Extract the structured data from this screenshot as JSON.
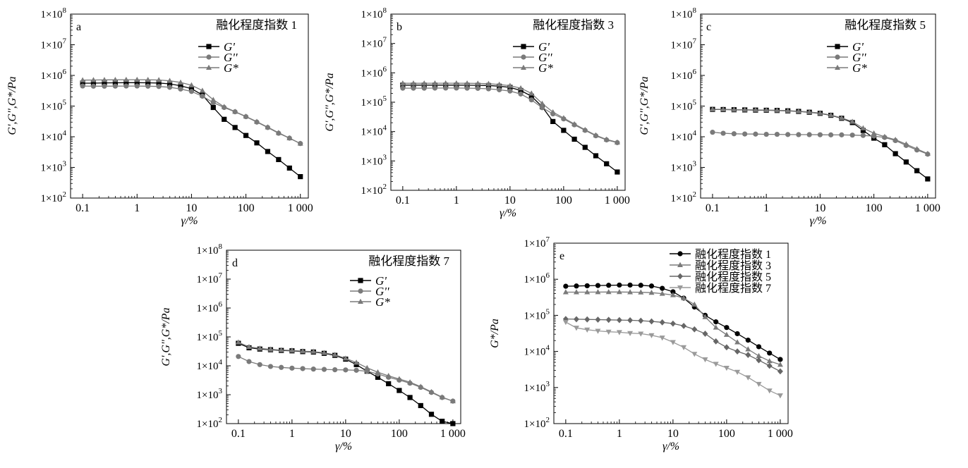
{
  "chart_data": [
    {
      "type": "line",
      "panel_letter": "a",
      "legend_title": "融化程度指数 1",
      "xlabel": "γ/%",
      "ylabel": "G',G'',G*/Pa",
      "x_scale": "log",
      "y_scale": "log",
      "xlim": [
        0.06,
        1400
      ],
      "ylim": [
        100,
        100000000
      ],
      "x_ticks": [
        0.1,
        1,
        10,
        100,
        1000
      ],
      "x_tick_labels": [
        "0.1",
        "1",
        "10",
        "100",
        "1 000"
      ],
      "y_ticks": [
        100,
        1000,
        10000,
        100000,
        1000000,
        10000000,
        100000000
      ],
      "y_tick_labels": [
        "1×10",
        "1×10",
        "1×10",
        "1×10",
        "1×10",
        "1×10",
        "1×10"
      ],
      "y_tick_exps": [
        "2",
        "3",
        "4",
        "5",
        "6",
        "7",
        "8"
      ],
      "x": [
        0.1,
        0.158,
        0.251,
        0.398,
        0.631,
        1,
        1.585,
        2.512,
        3.981,
        6.31,
        10,
        15.85,
        25.12,
        39.81,
        63.1,
        100,
        158.5,
        251.2,
        398.1,
        631,
        1000
      ],
      "series": [
        {
          "name": "G'",
          "marker": "square",
          "color": "#000000",
          "values": [
            560000,
            560000,
            570000,
            575000,
            580000,
            580000,
            575000,
            565000,
            530000,
            460000,
            370000,
            230000,
            90000,
            37000,
            20000,
            11000,
            6300,
            3300,
            1800,
            950,
            500
          ]
        },
        {
          "name": "G''",
          "marker": "circle",
          "color": "#7a7a7a",
          "values": [
            450000,
            445000,
            445000,
            447000,
            450000,
            450000,
            445000,
            435000,
            410000,
            360000,
            300000,
            210000,
            130000,
            90000,
            65000,
            45000,
            30000,
            20000,
            13000,
            9000,
            6000
          ]
        },
        {
          "name": "G*",
          "marker": "triangle",
          "color": "#7a7a7a",
          "values": [
            700000,
            710000,
            715000,
            720000,
            725000,
            725000,
            720000,
            710000,
            670000,
            590000,
            480000,
            320000,
            160000,
            95000,
            66000,
            46000,
            31000,
            20500,
            13500,
            9000,
            6000
          ]
        }
      ]
    },
    {
      "type": "line",
      "panel_letter": "b",
      "legend_title": "融化程度指数 3",
      "xlabel": "γ/%",
      "ylabel": "G',G'',G*/Pa",
      "x_scale": "log",
      "y_scale": "log",
      "xlim": [
        0.06,
        1400
      ],
      "ylim": [
        100,
        100000000
      ],
      "x_ticks": [
        0.1,
        1,
        10,
        100,
        1000
      ],
      "x_tick_labels": [
        "0.1",
        "1",
        "10",
        "100",
        "1 000"
      ],
      "y_ticks": [
        100,
        1000,
        10000,
        100000,
        1000000,
        10000000,
        100000000
      ],
      "y_tick_labels": [
        "1×10",
        "1×10",
        "1×10",
        "1×10",
        "1×10",
        "1×10",
        "1×10"
      ],
      "y_tick_exps": [
        "2",
        "3",
        "4",
        "5",
        "6",
        "7",
        "8"
      ],
      "x": [
        0.1,
        0.158,
        0.251,
        0.398,
        0.631,
        1,
        1.585,
        2.512,
        3.981,
        6.31,
        10,
        15.85,
        25.12,
        39.81,
        63.1,
        100,
        158.5,
        251.2,
        398.1,
        631,
        1000
      ],
      "series": [
        {
          "name": "G'",
          "marker": "square",
          "color": "#000000",
          "values": [
            380000,
            380000,
            380000,
            380000,
            380000,
            380000,
            378000,
            375000,
            370000,
            350000,
            320000,
            250000,
            160000,
            70000,
            22000,
            11000,
            5500,
            2900,
            1500,
            800,
            420
          ]
        },
        {
          "name": "G''",
          "marker": "circle",
          "color": "#7a7a7a",
          "values": [
            300000,
            300000,
            300000,
            302000,
            303000,
            303000,
            300000,
            296000,
            285000,
            265000,
            240000,
            190000,
            120000,
            65000,
            40000,
            27000,
            17000,
            11000,
            7200,
            5200,
            4200
          ]
        },
        {
          "name": "G*",
          "marker": "triangle",
          "color": "#7a7a7a",
          "values": [
            440000,
            440000,
            440000,
            442000,
            443000,
            443000,
            440000,
            435000,
            425000,
            400000,
            365000,
            300000,
            200000,
            90000,
            46000,
            29000,
            18000,
            11500,
            7500,
            5400,
            4300
          ]
        }
      ]
    },
    {
      "type": "line",
      "panel_letter": "c",
      "legend_title": "融化程度指数 5",
      "xlabel": "γ/%",
      "ylabel": "G',G'',G*/Pa",
      "x_scale": "log",
      "y_scale": "log",
      "xlim": [
        0.06,
        1400
      ],
      "ylim": [
        100,
        100000000
      ],
      "x_ticks": [
        0.1,
        1,
        10,
        100,
        1000
      ],
      "x_tick_labels": [
        "0.1",
        "1",
        "10",
        "100",
        "1 000"
      ],
      "y_ticks": [
        100,
        1000,
        10000,
        100000,
        1000000,
        10000000,
        100000000
      ],
      "y_tick_labels": [
        "1×10",
        "1×10",
        "1×10",
        "1×10",
        "1×10",
        "1×10",
        "1×10"
      ],
      "y_tick_exps": [
        "2",
        "3",
        "4",
        "5",
        "6",
        "7",
        "8"
      ],
      "x": [
        0.1,
        0.158,
        0.251,
        0.398,
        0.631,
        1,
        1.585,
        2.512,
        3.981,
        6.31,
        10,
        15.85,
        25.12,
        39.81,
        63.1,
        100,
        158.5,
        251.2,
        398.1,
        631,
        1000
      ],
      "series": [
        {
          "name": "G'",
          "marker": "square",
          "color": "#000000",
          "values": [
            78000,
            77000,
            76000,
            75000,
            74000,
            73000,
            72000,
            70000,
            67000,
            63000,
            58000,
            50000,
            40000,
            29000,
            16000,
            9000,
            5500,
            2800,
            1500,
            780,
            420
          ]
        },
        {
          "name": "G''",
          "marker": "circle",
          "color": "#7a7a7a",
          "values": [
            14000,
            13000,
            12500,
            12300,
            12200,
            12000,
            12000,
            11800,
            11700,
            11700,
            11600,
            11500,
            11500,
            11300,
            11000,
            10500,
            9500,
            7500,
            5200,
            3700,
            2700
          ]
        },
        {
          "name": "G*",
          "marker": "triangle",
          "color": "#7a7a7a",
          "values": [
            79000,
            78000,
            77000,
            76000,
            75000,
            74000,
            73000,
            71000,
            68000,
            64000,
            59000,
            51000,
            41000,
            31000,
            19000,
            13000,
            10000,
            8000,
            5700,
            4000,
            2800
          ]
        }
      ]
    },
    {
      "type": "line",
      "panel_letter": "d",
      "legend_title": "融化程度指数 7",
      "xlabel": "γ/%",
      "ylabel": "G',G'',G*/Pa",
      "x_scale": "log",
      "y_scale": "log",
      "xlim": [
        0.06,
        1400
      ],
      "ylim": [
        100,
        100000000
      ],
      "x_ticks": [
        0.1,
        1,
        10,
        100,
        1000
      ],
      "x_tick_labels": [
        "0.1",
        "1",
        "10",
        "100",
        "1 000"
      ],
      "y_ticks": [
        100,
        1000,
        10000,
        100000,
        1000000,
        10000000,
        100000000
      ],
      "y_tick_labels": [
        "1×10",
        "1×10",
        "1×10",
        "1×10",
        "1×10",
        "1×10",
        "1×10"
      ],
      "y_tick_exps": [
        "2",
        "3",
        "4",
        "5",
        "6",
        "7",
        "8"
      ],
      "x": [
        0.1,
        0.158,
        0.251,
        0.398,
        0.631,
        1,
        1.585,
        2.512,
        3.981,
        6.31,
        10,
        15.85,
        25.12,
        39.81,
        63.1,
        100,
        158.5,
        251.2,
        398.1,
        631,
        1000
      ],
      "series": [
        {
          "name": "G'",
          "marker": "square",
          "color": "#000000",
          "values": [
            60000,
            42000,
            38000,
            36000,
            34000,
            33000,
            31000,
            30000,
            27000,
            23000,
            17000,
            11000,
            6500,
            4000,
            2400,
            1400,
            800,
            420,
            210,
            120,
            100
          ]
        },
        {
          "name": "G''",
          "marker": "circle",
          "color": "#7a7a7a",
          "values": [
            21000,
            14000,
            11000,
            9500,
            8800,
            8300,
            8000,
            7700,
            7500,
            7300,
            7200,
            7000,
            6500,
            5200,
            4000,
            3200,
            2500,
            1800,
            1200,
            800,
            600
          ]
        },
        {
          "name": "G*",
          "marker": "triangle",
          "color": "#7a7a7a",
          "values": [
            65000,
            45000,
            40000,
            37000,
            35000,
            34000,
            32000,
            31000,
            28000,
            24000,
            18000,
            13000,
            8500,
            6000,
            4500,
            3500,
            2700,
            1900,
            1250,
            820,
            600
          ]
        }
      ]
    },
    {
      "type": "line",
      "panel_letter": "e",
      "legend_title": "",
      "xlabel": "γ/%",
      "ylabel": "G*/Pa",
      "x_scale": "log",
      "y_scale": "log",
      "xlim": [
        0.06,
        1400
      ],
      "ylim": [
        100,
        10000000
      ],
      "x_ticks": [
        0.1,
        1,
        10,
        100,
        1000
      ],
      "x_tick_labels": [
        "0.1",
        "1",
        "10",
        "100",
        "1 000"
      ],
      "y_ticks": [
        100,
        1000,
        10000,
        100000,
        1000000,
        10000000
      ],
      "y_tick_labels": [
        "1×10",
        "1×10",
        "1×10",
        "1×10",
        "1×10",
        "1×10"
      ],
      "y_tick_exps": [
        "2",
        "3",
        "4",
        "5",
        "6",
        "7"
      ],
      "x": [
        0.1,
        0.158,
        0.251,
        0.398,
        0.631,
        1,
        1.585,
        2.512,
        3.981,
        6.31,
        10,
        15.85,
        25.12,
        39.81,
        63.1,
        100,
        158.5,
        251.2,
        398.1,
        631,
        1000
      ],
      "series": [
        {
          "name": "融化程度指数 1",
          "marker": "circle",
          "color": "#000000",
          "values": [
            640000,
            650000,
            660000,
            670000,
            680000,
            690000,
            690000,
            680000,
            650000,
            560000,
            450000,
            300000,
            170000,
            100000,
            66000,
            46000,
            31000,
            20500,
            13500,
            9000,
            6000
          ]
        },
        {
          "name": "融化程度指数 3",
          "marker": "triangle",
          "color": "#7a7a7a",
          "values": [
            440000,
            440000,
            440000,
            442000,
            443000,
            443000,
            440000,
            435000,
            425000,
            400000,
            365000,
            300000,
            200000,
            90000,
            46000,
            29000,
            18000,
            11500,
            7500,
            5400,
            4300
          ]
        },
        {
          "name": "融化程度指数 5",
          "marker": "diamond",
          "color": "#666666",
          "values": [
            79000,
            78000,
            77000,
            76000,
            75000,
            74000,
            73000,
            71000,
            68000,
            64000,
            59000,
            51000,
            41000,
            31000,
            19000,
            13000,
            10000,
            8000,
            5700,
            4000,
            2800
          ]
        },
        {
          "name": "融化程度指数 7",
          "marker": "triangle-down",
          "color": "#9a9a9a",
          "values": [
            65000,
            45000,
            40000,
            37000,
            35000,
            34000,
            32000,
            31000,
            28000,
            24000,
            18000,
            13000,
            8500,
            6000,
            4500,
            3500,
            2700,
            1900,
            1250,
            820,
            600
          ]
        }
      ]
    }
  ]
}
